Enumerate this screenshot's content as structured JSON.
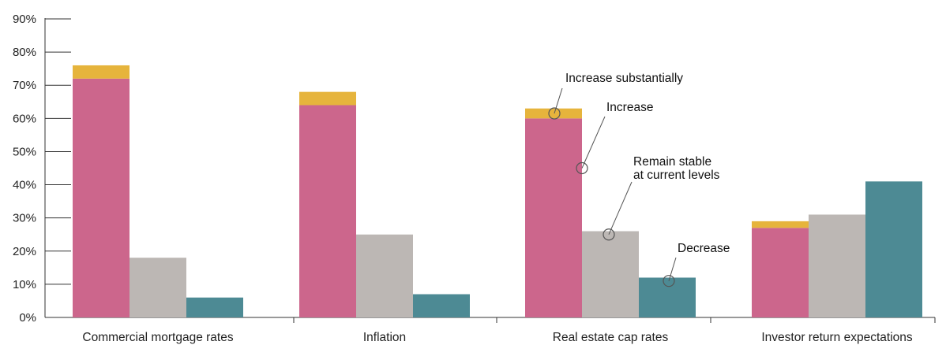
{
  "chart_data": {
    "type": "bar",
    "stacked_first_series": true,
    "categories": [
      "Commercial mortgage rates",
      "Inflation",
      "Real estate cap rates",
      "Investor return expectations"
    ],
    "series": [
      {
        "name": "Increase",
        "color": "#cc668c",
        "values": [
          72,
          64,
          60,
          27
        ]
      },
      {
        "name": "Increase substantially",
        "color": "#e6b43c",
        "values": [
          4,
          4,
          3,
          2
        ],
        "stacked_on": "Increase"
      },
      {
        "name": "Remain stable at current levels",
        "color": "#bcb7b4",
        "values": [
          18,
          25,
          26,
          31
        ]
      },
      {
        "name": "Decrease",
        "color": "#4d8a94",
        "values": [
          6,
          7,
          12,
          41
        ]
      }
    ],
    "ylim": [
      0,
      90
    ],
    "y_ticks": [
      "0%",
      "10%",
      "20%",
      "30%",
      "40%",
      "50%",
      "60%",
      "70%",
      "80%",
      "90%"
    ],
    "grid": false,
    "annotations": {
      "increase_substantially": "Increase substantially",
      "increase": "Increase",
      "remain_stable_line1": "Remain stable",
      "remain_stable_line2": "at current levels",
      "decrease": "Decrease"
    }
  }
}
